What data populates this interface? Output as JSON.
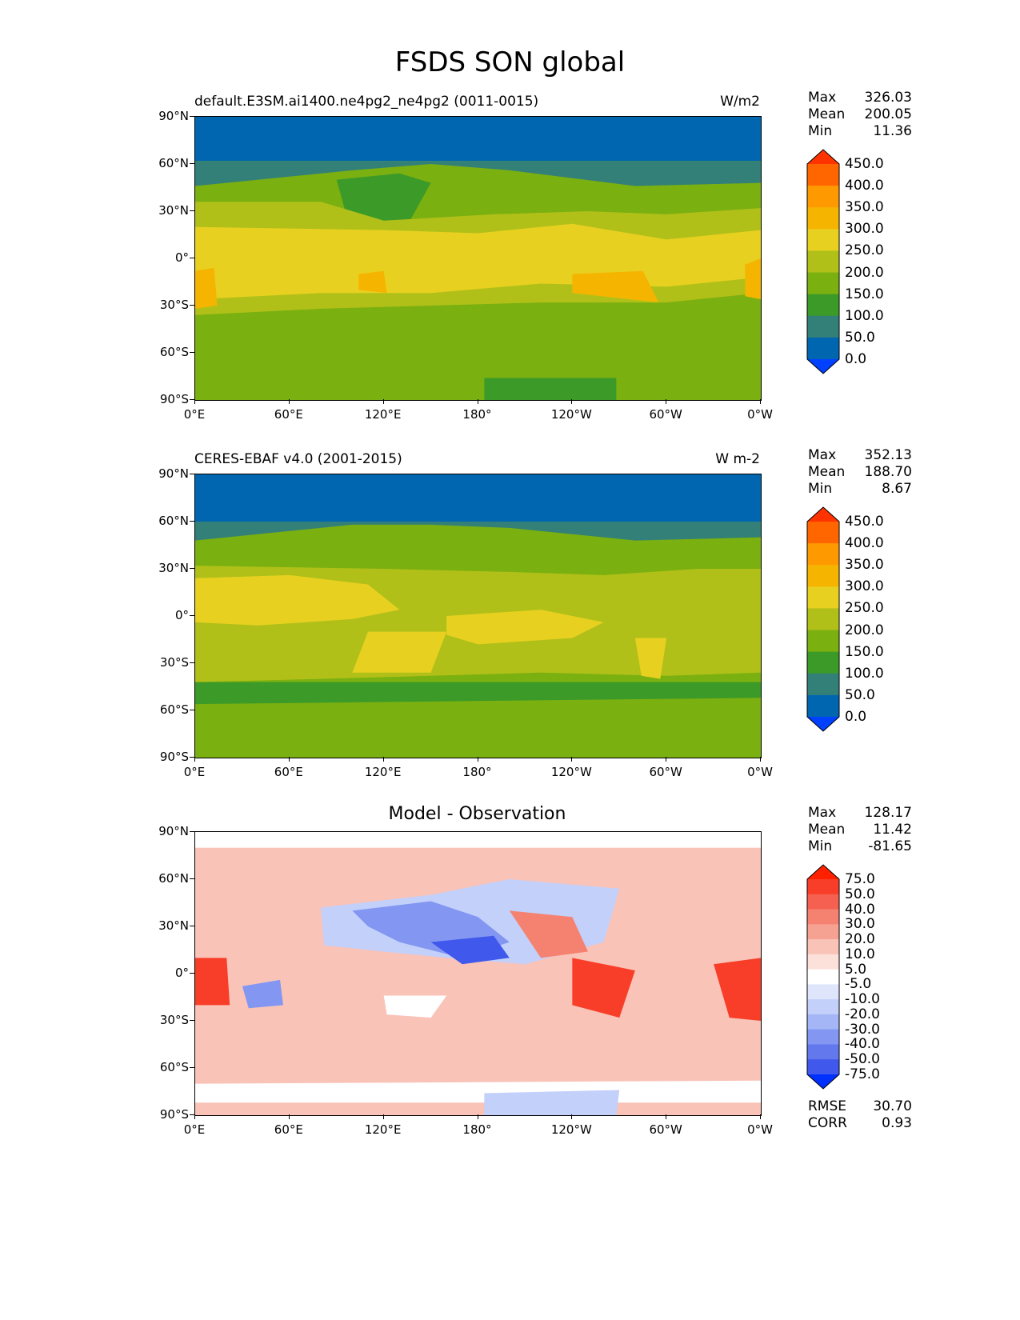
{
  "figure_title": "FSDS SON global",
  "lat_ticks": [
    "90°N",
    "60°N",
    "30°N",
    "0°",
    "30°S",
    "60°S",
    "90°S"
  ],
  "lon_ticks": [
    "0°E",
    "60°E",
    "120°E",
    "180°",
    "120°W",
    "60°W",
    "0°W"
  ],
  "panels": [
    {
      "title": "default.E3SM.ai1400.ne4pg2_ne4pg2 (0011-0015)",
      "units": "W/m2",
      "center_title": "",
      "stats": [
        {
          "label": "Max",
          "value": "326.03"
        },
        {
          "label": "Mean",
          "value": "200.05"
        },
        {
          "label": "Min",
          "value": "11.36"
        }
      ]
    },
    {
      "title": "CERES-EBAF v4.0 (2001-2015)",
      "units": "W m-2",
      "center_title": "",
      "stats": [
        {
          "label": "Max",
          "value": "352.13"
        },
        {
          "label": "Mean",
          "value": "188.70"
        },
        {
          "label": "Min",
          "value": "8.67"
        }
      ]
    },
    {
      "title": "",
      "units": "",
      "center_title": "Model - Observation",
      "stats": [
        {
          "label": "Max",
          "value": "128.17"
        },
        {
          "label": "Mean",
          "value": "11.42"
        },
        {
          "label": "Min",
          "value": "-81.65"
        }
      ],
      "bottom_stats": [
        {
          "label": "RMSE",
          "value": "30.70"
        },
        {
          "label": "CORR",
          "value": "0.93"
        }
      ]
    }
  ],
  "colorbars": {
    "abs": {
      "labels": [
        "450.0",
        "400.0",
        "350.0",
        "300.0",
        "250.0",
        "200.0",
        "150.0",
        "100.0",
        "50.0",
        "0.0"
      ],
      "colors": [
        "#ff3300",
        "#ff6600",
        "#ff9900",
        "#f5b400",
        "#e8d020",
        "#b0c018",
        "#7ab010",
        "#3c9a28",
        "#338078",
        "#0066b0",
        "#0040ff"
      ]
    },
    "diff": {
      "labels": [
        "75.0",
        "50.0",
        "40.0",
        "30.0",
        "20.0",
        "10.0",
        "5.0",
        "-5.0",
        "-10.0",
        "-20.0",
        "-30.0",
        "-40.0",
        "-50.0",
        "-75.0"
      ],
      "colors": [
        "#ff2000",
        "#f83e28",
        "#f56050",
        "#f58270",
        "#f6a292",
        "#f9c3b8",
        "#fce0da",
        "#ffffff",
        "#dfe6fb",
        "#c3d0fa",
        "#a4b6f6",
        "#8296f2",
        "#6478ee",
        "#4058ec",
        "#0030ff"
      ]
    }
  }
}
